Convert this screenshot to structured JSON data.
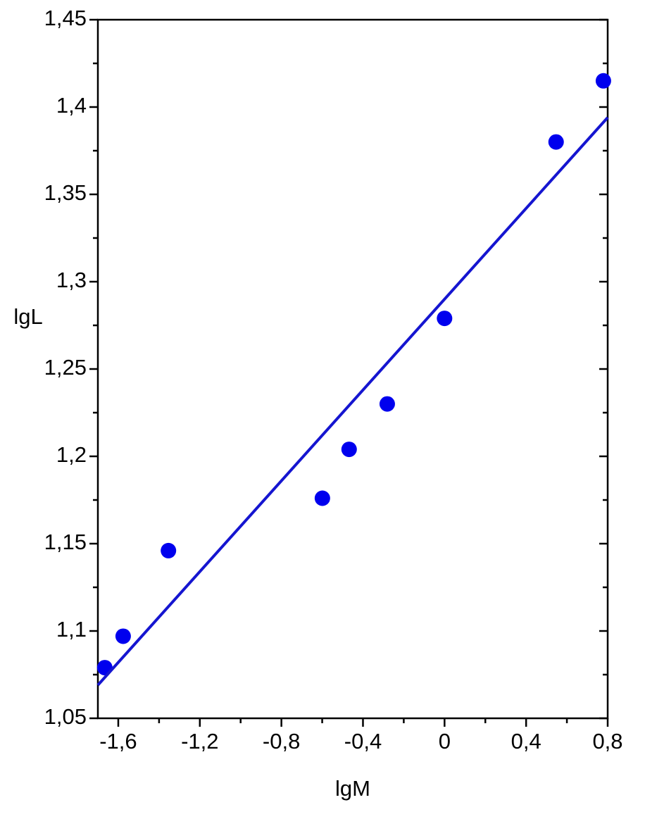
{
  "chart_data": {
    "type": "scatter",
    "xlabel": "lgM",
    "ylabel": "lgL",
    "xlim": [
      -1.7,
      0.8
    ],
    "ylim": [
      1.05,
      1.45
    ],
    "xticks": [
      {
        "value": -1.6,
        "label": "-1,6"
      },
      {
        "value": -1.2,
        "label": "-1,2"
      },
      {
        "value": -0.8,
        "label": "-0,8"
      },
      {
        "value": -0.4,
        "label": "-0,4"
      },
      0,
      {
        "value": 0.4,
        "label": "0,4"
      },
      {
        "value": 0.8,
        "label": "0,8"
      }
    ],
    "xminorticks": [
      -1.4,
      -1.0,
      -0.6,
      -0.2,
      0.2,
      0.6
    ],
    "yticks": [
      {
        "value": 1.05,
        "label": "1,05"
      },
      {
        "value": 1.1,
        "label": "1,1"
      },
      {
        "value": 1.15,
        "label": "1,15"
      },
      {
        "value": 1.2,
        "label": "1,2"
      },
      {
        "value": 1.25,
        "label": "1,25"
      },
      {
        "value": 1.3,
        "label": "1,3"
      },
      {
        "value": 1.35,
        "label": "1,35"
      },
      {
        "value": 1.4,
        "label": "1,4"
      },
      {
        "value": 1.45,
        "label": "1,45"
      }
    ],
    "yminorticks": [
      1.075,
      1.125,
      1.175,
      1.225,
      1.275,
      1.325,
      1.375,
      1.425
    ],
    "series": [
      {
        "type": "scatter",
        "color": "#0000ee",
        "x": [
          -1.666,
          -1.576,
          -1.354,
          -0.599,
          -0.468,
          -0.281,
          0.0,
          0.547,
          0.779
        ],
        "values": [
          1.079,
          1.097,
          1.146,
          1.176,
          1.204,
          1.23,
          1.279,
          1.38,
          1.415
        ]
      },
      {
        "type": "line",
        "color": "#1515d0",
        "x": [
          -1.7,
          0.8
        ],
        "values": [
          1.069,
          1.394
        ]
      }
    ]
  }
}
